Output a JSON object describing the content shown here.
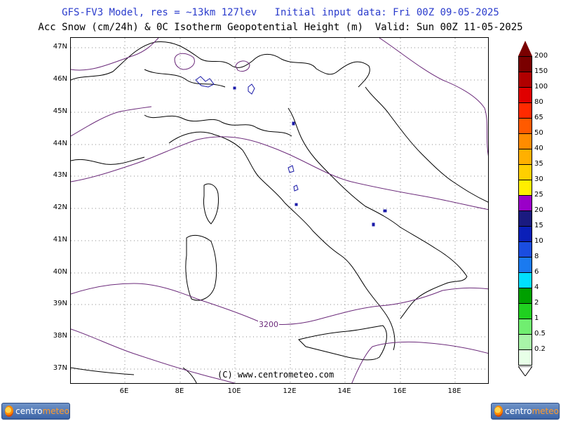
{
  "header": {
    "line1": "GFS-FV3 Model, res = ~13km 127lev   Initial input data: Fri 00Z 09-05-2025",
    "line2": "Acc Snow (cm/24h) & 0C Isotherm Geopotential Height (m)  Valid: Sun 00Z 11-05-2025"
  },
  "axes": {
    "lat_labels": [
      "47N",
      "46N",
      "45N",
      "44N",
      "43N",
      "42N",
      "41N",
      "40N",
      "39N",
      "38N",
      "37N"
    ],
    "lon_labels": [
      "6E",
      "8E",
      "10E",
      "12E",
      "14E",
      "16E",
      "18E"
    ]
  },
  "map": {
    "copyright": "(C) www.centrometeo.com",
    "contour_label": "3200",
    "contour_color": "#6b2a7a",
    "snow_color": "#1a1aa8"
  },
  "legend": {
    "labels": [
      "200",
      "150",
      "100",
      "80",
      "65",
      "50",
      "40",
      "35",
      "30",
      "25",
      "20",
      "15",
      "10",
      "8",
      "6",
      "4",
      "2",
      "1",
      "0.5",
      "0.2"
    ],
    "colors": [
      "#7a0000",
      "#b00000",
      "#e00000",
      "#ff2a00",
      "#ff5a00",
      "#ff8c00",
      "#ffb000",
      "#ffcf00",
      "#ffee00",
      "#9a00c8",
      "#1a1a80",
      "#0a1fb8",
      "#1a4de0",
      "#1a7af0",
      "#00e0ff",
      "#00a000",
      "#20d020",
      "#70ee70",
      "#a8f5a8",
      "#e8ffe8"
    ]
  },
  "logos": {
    "left_text_a": "centro",
    "left_text_b": "meteo",
    "right_text_a": "centro",
    "right_text_b": "meteo"
  }
}
